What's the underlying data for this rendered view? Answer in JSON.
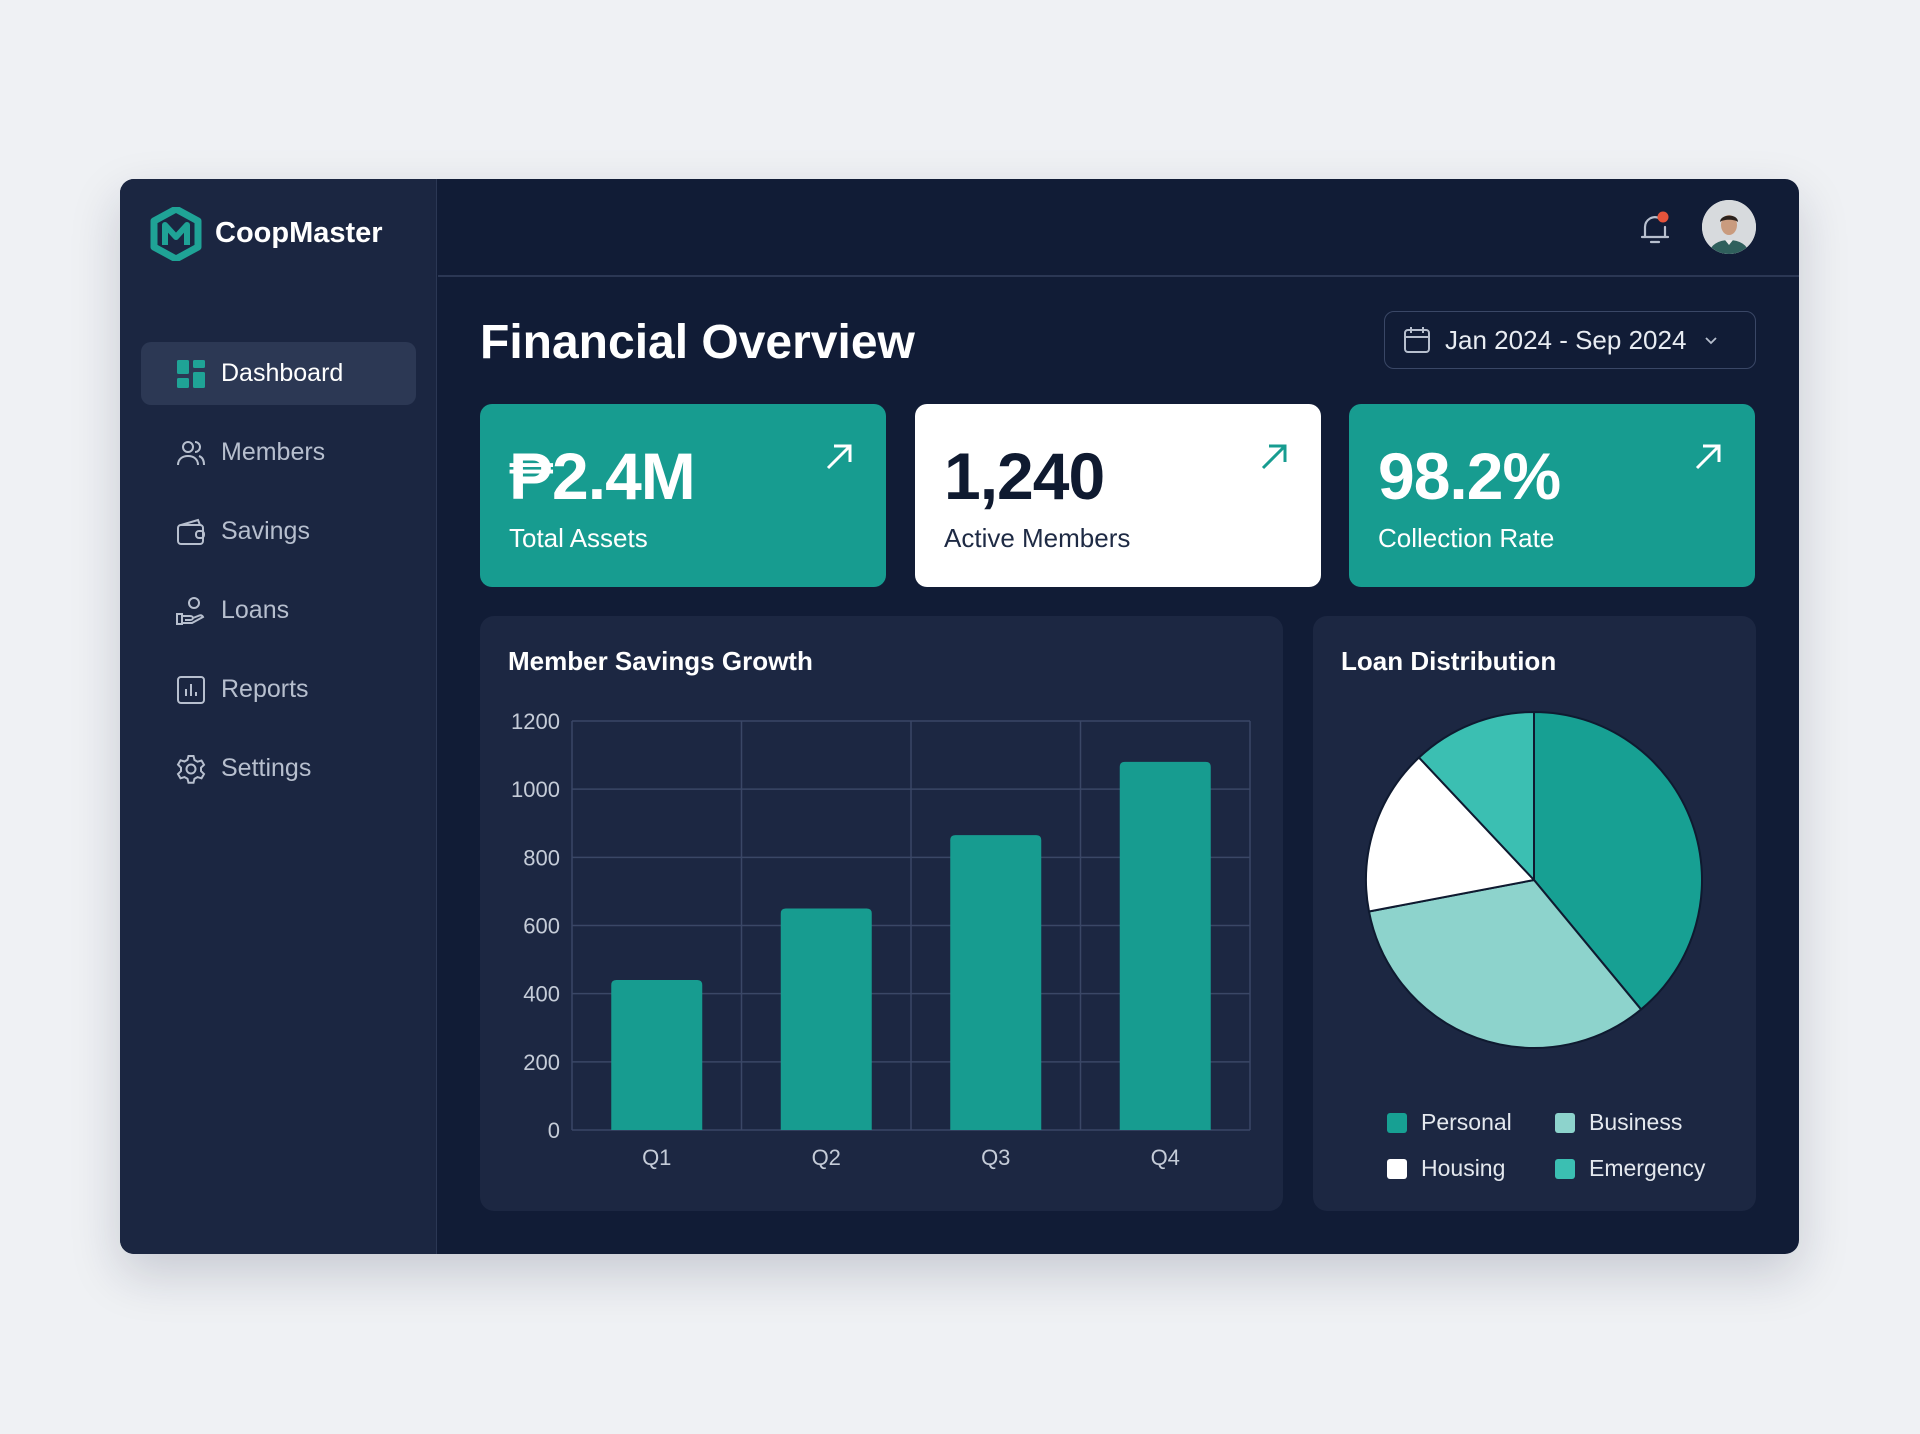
{
  "app": {
    "name": "CoopMaster",
    "logo_letter": "M"
  },
  "sidebar": {
    "items": [
      {
        "label": "Dashboard",
        "icon": "dashboard-grid-icon",
        "active": true
      },
      {
        "label": "Members",
        "icon": "users-icon"
      },
      {
        "label": "Savings",
        "icon": "wallet-icon"
      },
      {
        "label": "Loans",
        "icon": "hand-coin-icon"
      },
      {
        "label": "Reports",
        "icon": "bar-chart-icon"
      },
      {
        "label": "Settings",
        "icon": "gear-icon"
      }
    ]
  },
  "header": {
    "notification_icon": "bell-icon",
    "has_notification": true,
    "avatar": "user-avatar"
  },
  "main": {
    "title": "Financial Overview",
    "date_range": "Jan 2024 - Sep 2024",
    "cards": [
      {
        "value": "₱2.4M",
        "label": "Total Assets",
        "style": "teal"
      },
      {
        "value": "1,240",
        "label": "Active Members",
        "style": "white"
      },
      {
        "value": "98.2%",
        "label": "Collection Rate",
        "style": "teal"
      }
    ]
  },
  "colors": {
    "accent": "#179c90",
    "background": "#111c36",
    "sidebar": "#1b2641",
    "notification": "#e5533b"
  },
  "chart_data": [
    {
      "type": "bar",
      "title": "Member Savings Growth",
      "categories": [
        "Q1",
        "Q2",
        "Q3",
        "Q4"
      ],
      "values": [
        440,
        650,
        865,
        1080
      ],
      "ylim": [
        0,
        1200
      ],
      "yticks": [
        "0",
        "200",
        "400",
        "600",
        "800",
        "1000",
        "1200"
      ],
      "grid": true,
      "color": "#179c90"
    },
    {
      "type": "pie",
      "title": "Loan Distribution",
      "labels": [
        "Personal",
        "Business",
        "Housing",
        "Emergency"
      ],
      "values": [
        39,
        33,
        16,
        12
      ],
      "colors": [
        "#17a093",
        "#8dd3cc",
        "#ffffff",
        "#3bbfb2"
      ],
      "legend": "bottom"
    }
  ]
}
